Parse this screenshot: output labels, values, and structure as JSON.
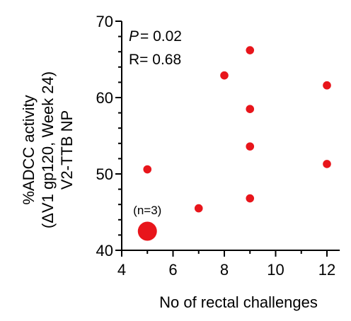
{
  "chart_data": {
    "type": "scatter",
    "xlabel": "No of rectal challenges",
    "ylabel_lines": [
      "%ADCC activity",
      "(ΔV1 gp120, Week 24)",
      "V2-TTB NP"
    ],
    "xlim": [
      4,
      13
    ],
    "ylim": [
      40,
      70
    ],
    "xticks": [
      "4",
      "6",
      "8",
      "10",
      "12"
    ],
    "yticks": [
      "40",
      "50",
      "60",
      "70"
    ],
    "points": [
      {
        "x": 5,
        "y": 42.5,
        "n": 3
      },
      {
        "x": 5,
        "y": 50.6
      },
      {
        "x": 7,
        "y": 45.5
      },
      {
        "x": 8,
        "y": 62.9
      },
      {
        "x": 9,
        "y": 66.2
      },
      {
        "x": 9,
        "y": 58.5
      },
      {
        "x": 9,
        "y": 53.6
      },
      {
        "x": 9,
        "y": 46.8
      },
      {
        "x": 12,
        "y": 61.6
      },
      {
        "x": 12,
        "y": 51.3
      }
    ],
    "point_color": "#e8151b",
    "stats": {
      "p_label": "P",
      "p_value": "= 0.02",
      "r_text": "R= 0.68"
    },
    "group_label": "(n=3)",
    "grid": false
  }
}
